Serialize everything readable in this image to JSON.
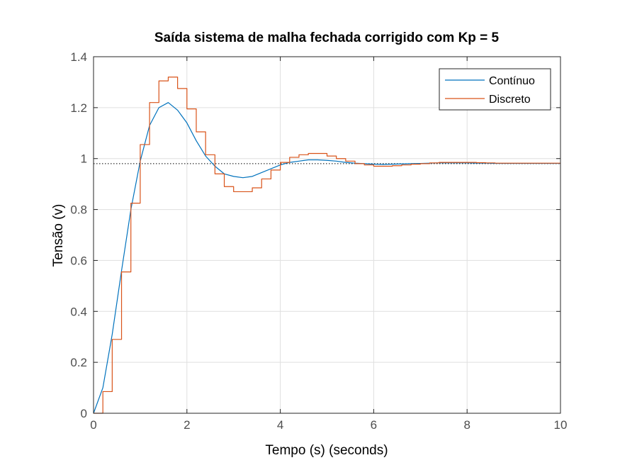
{
  "chart_data": {
    "type": "line",
    "title": "Saída sistema de malha fechada corrigido com Kp = 5",
    "xlabel": "Tempo (s) (seconds)",
    "ylabel": "Tensão (v)",
    "xlim": [
      0,
      10
    ],
    "ylim": [
      0,
      1.4
    ],
    "xticks": [
      0,
      2,
      4,
      6,
      8,
      10
    ],
    "yticks": [
      0,
      0.2,
      0.4,
      0.6,
      0.8,
      1,
      1.2,
      1.4
    ],
    "xtick_labels": [
      "0",
      "2",
      "4",
      "6",
      "8",
      "10"
    ],
    "ytick_labels": [
      "0",
      "0.2",
      "0.4",
      "0.6",
      "0.8",
      "1",
      "1.2",
      "1.4"
    ],
    "grid": true,
    "legend_position": "top-right",
    "steady_state_reference": 0.98,
    "series": [
      {
        "name": "Contínuo",
        "color": "#0072BD",
        "style": "line",
        "x": [
          0,
          0.2,
          0.4,
          0.6,
          0.8,
          1.0,
          1.2,
          1.4,
          1.6,
          1.8,
          2.0,
          2.2,
          2.4,
          2.6,
          2.8,
          3.0,
          3.2,
          3.4,
          3.6,
          3.8,
          4.0,
          4.2,
          4.4,
          4.6,
          4.8,
          5.0,
          5.2,
          5.4,
          5.6,
          5.8,
          6.0,
          6.2,
          6.4,
          6.6,
          6.8,
          7.0,
          7.2,
          7.4,
          7.6,
          7.8,
          8.0,
          8.2,
          8.4,
          8.6,
          8.8,
          9.0,
          9.2,
          9.4,
          9.6,
          9.8,
          10.0
        ],
        "y": [
          0,
          0.1,
          0.31,
          0.56,
          0.8,
          0.99,
          1.13,
          1.2,
          1.22,
          1.19,
          1.14,
          1.07,
          1.01,
          0.97,
          0.94,
          0.93,
          0.925,
          0.93,
          0.945,
          0.96,
          0.975,
          0.985,
          0.99,
          0.995,
          0.995,
          0.993,
          0.99,
          0.985,
          0.982,
          0.98,
          0.978,
          0.977,
          0.978,
          0.979,
          0.98,
          0.981,
          0.982,
          0.983,
          0.983,
          0.983,
          0.983,
          0.982,
          0.982,
          0.981,
          0.981,
          0.981,
          0.981,
          0.981,
          0.981,
          0.981,
          0.981
        ]
      },
      {
        "name": "Discreto",
        "color": "#D95319",
        "style": "stairs",
        "x": [
          0,
          0.2,
          0.4,
          0.6,
          0.8,
          1.0,
          1.2,
          1.4,
          1.6,
          1.8,
          2.0,
          2.2,
          2.4,
          2.6,
          2.8,
          3.0,
          3.2,
          3.4,
          3.6,
          3.8,
          4.0,
          4.2,
          4.4,
          4.6,
          4.8,
          5.0,
          5.2,
          5.4,
          5.6,
          5.8,
          6.0,
          6.2,
          6.4,
          6.6,
          6.8,
          7.0,
          7.2,
          7.4,
          7.6,
          7.8,
          8.0,
          8.2,
          8.4,
          8.6,
          8.8,
          9.0,
          9.2,
          9.4,
          9.6,
          9.8,
          10.0
        ],
        "y": [
          0,
          0.085,
          0.29,
          0.555,
          0.825,
          1.055,
          1.22,
          1.305,
          1.32,
          1.275,
          1.195,
          1.105,
          1.015,
          0.94,
          0.89,
          0.87,
          0.87,
          0.885,
          0.92,
          0.955,
          0.985,
          1.005,
          1.015,
          1.02,
          1.02,
          1.01,
          1.0,
          0.99,
          0.98,
          0.975,
          0.97,
          0.97,
          0.972,
          0.975,
          0.978,
          0.98,
          0.983,
          0.985,
          0.985,
          0.985,
          0.985,
          0.984,
          0.983,
          0.982,
          0.982,
          0.982,
          0.982,
          0.982,
          0.982,
          0.982,
          0.982
        ]
      }
    ]
  }
}
